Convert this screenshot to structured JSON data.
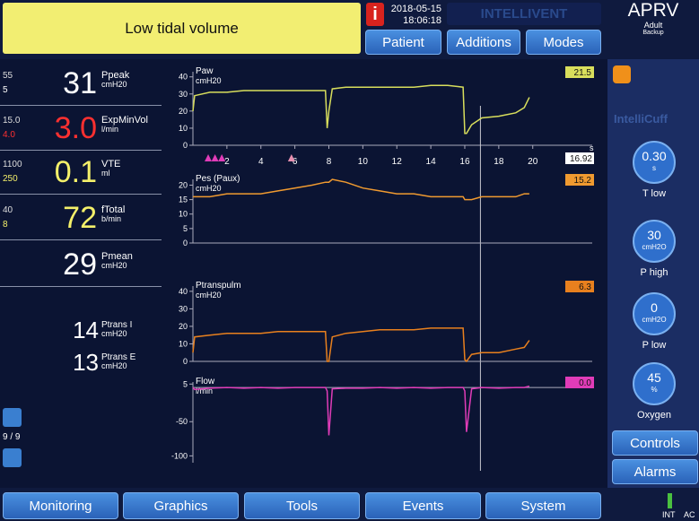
{
  "header": {
    "alarm": "Low tidal volume",
    "info_icon": "i",
    "date": "2018-05-15",
    "time": "18:06:18",
    "intellivent": "INTELLIVENT",
    "mode": "APRV",
    "patient_group": "Adult",
    "backup": "Backup",
    "buttons": [
      "Patient",
      "Additions",
      "Modes"
    ]
  },
  "monitoring": [
    {
      "limit_high": "55",
      "limit_low": "5",
      "value": "31",
      "name": "Ppeak",
      "unit": "cmH20",
      "color": "#ffffff",
      "low_color": "#ffffff"
    },
    {
      "limit_high": "15.0",
      "limit_low": "4.0",
      "value": "3.0",
      "name": "ExpMinVol",
      "unit": "l/min",
      "color": "#ff3030",
      "low_color": "#ff3030"
    },
    {
      "limit_high": "1100",
      "limit_low": "250",
      "value": "0.1",
      "name": "VTE",
      "unit": "ml",
      "color": "#f4f06a",
      "low_color": "#f4f06a"
    },
    {
      "limit_high": "40",
      "limit_low": "8",
      "value": "72",
      "name": "fTotal",
      "unit": "b/min",
      "color": "#f4f06a",
      "low_color": "#f4f06a"
    },
    {
      "value": "29",
      "name": "Pmean",
      "unit": "cmH20",
      "color": "#ffffff"
    }
  ],
  "ptrans": [
    {
      "value": "14",
      "name": "Ptrans I",
      "unit": "cmH20"
    },
    {
      "value": "13",
      "name": "Ptrans E",
      "unit": "cmH20"
    }
  ],
  "page_indicator": "9 / 9",
  "chart_data": [
    {
      "type": "line",
      "title": "Paw",
      "unit": "cmH20",
      "color": "#d8de5c",
      "current_value": "21.5",
      "x": [
        0,
        0.1,
        1,
        2,
        3,
        4,
        5,
        6,
        7,
        7.8,
        7.9,
        8.0,
        8.2,
        9,
        10,
        11,
        12,
        13,
        14,
        15,
        15.9,
        16.0,
        16.1,
        16.4,
        17,
        18,
        19,
        19.5,
        19.8
      ],
      "values": [
        20,
        29,
        31,
        31,
        32,
        32,
        32,
        32,
        32,
        32,
        10,
        20,
        33,
        34,
        34,
        34,
        34,
        34,
        35,
        35,
        34,
        7,
        7,
        12,
        16,
        17,
        19,
        22,
        28
      ],
      "xlim": [
        0,
        23.5
      ],
      "xticks": [
        2,
        4,
        6,
        8,
        10,
        12,
        14,
        16,
        18,
        20
      ],
      "x_unit": "s",
      "cursor": 16.92,
      "event_markers": [
        0.9,
        1.3,
        1.7,
        5.8
      ],
      "ylim": [
        0,
        43
      ],
      "yticks": [
        0,
        10,
        20,
        30,
        40
      ]
    },
    {
      "type": "line",
      "title": "Pes (Paux)",
      "unit": "cmH20",
      "color": "#f09a30",
      "current_value": "15.2",
      "x": [
        0,
        0.1,
        1,
        2,
        3,
        4,
        5,
        6,
        7,
        7.8,
        7.9,
        8.0,
        8.2,
        9,
        10,
        11,
        12,
        13,
        14,
        15,
        15.9,
        16.0,
        16.1,
        16.4,
        17,
        18,
        19,
        19.5,
        19.8
      ],
      "values": [
        16,
        16,
        16,
        17,
        17,
        17,
        18,
        19,
        20,
        21,
        21,
        21,
        22,
        21,
        19,
        18,
        17,
        17,
        16,
        16,
        16,
        15,
        15,
        15,
        16,
        16,
        16,
        17,
        17
      ],
      "xlim": [
        0,
        23.5
      ],
      "ylim": [
        0,
        22
      ],
      "yticks": [
        0,
        5,
        10,
        15,
        20
      ]
    },
    {
      "type": "line",
      "title": "Ptranspulm",
      "unit": "cmH20",
      "color": "#e8801e",
      "current_value": "6.3",
      "x": [
        0,
        0.1,
        1,
        2,
        3,
        4,
        5,
        6,
        7,
        7.8,
        7.9,
        8.0,
        8.2,
        9,
        10,
        11,
        12,
        13,
        14,
        15,
        15.9,
        16.0,
        16.1,
        16.4,
        17,
        18,
        19,
        19.5,
        19.8
      ],
      "values": [
        5,
        14,
        15,
        16,
        16,
        16,
        17,
        17,
        17,
        17,
        0,
        0,
        14,
        16,
        17,
        18,
        18,
        18,
        19,
        19,
        19,
        1,
        0,
        4,
        5,
        5,
        7,
        8,
        12
      ],
      "xlim": [
        0,
        23.5
      ],
      "ylim": [
        0,
        43
      ],
      "yticks": [
        0,
        10,
        20,
        30,
        40
      ]
    },
    {
      "type": "line",
      "title": "Flow",
      "unit": "l/min",
      "color": "#e03cb8",
      "current_value": "0.0",
      "x": [
        0,
        0.1,
        1,
        2,
        3,
        4,
        5,
        6,
        7,
        7.8,
        7.9,
        8.0,
        8.2,
        9,
        10,
        11,
        12,
        13,
        14,
        15,
        15.9,
        16.0,
        16.1,
        16.4,
        17,
        18,
        19,
        19.5,
        19.8
      ],
      "values": [
        0,
        -3,
        -1,
        0,
        -1,
        0,
        -1,
        0,
        0,
        0,
        -5,
        -70,
        -2,
        -1,
        -1,
        0,
        -1,
        0,
        -1,
        0,
        0,
        -5,
        -65,
        -2,
        0,
        -1,
        0,
        0,
        2
      ],
      "xlim": [
        0,
        23.5
      ],
      "ylim": [
        -110,
        8
      ],
      "yticks": [
        5,
        -50,
        -100
      ]
    }
  ],
  "right_panel": {
    "intellicuff": "IntelliCuff",
    "controls": [
      {
        "value": "0.30",
        "unit": "s",
        "name": "T low"
      },
      {
        "value": "30",
        "unit": "cmH2O",
        "name": "P high"
      },
      {
        "value": "0",
        "unit": "cmH2O",
        "name": "P low"
      },
      {
        "value": "45",
        "unit": "%",
        "name": "Oxygen"
      }
    ],
    "buttons": [
      "Controls",
      "Alarms"
    ]
  },
  "nav": [
    "Monitoring",
    "Graphics",
    "Tools",
    "Events",
    "System"
  ],
  "power": {
    "int": "INT",
    "ac": "AC"
  }
}
